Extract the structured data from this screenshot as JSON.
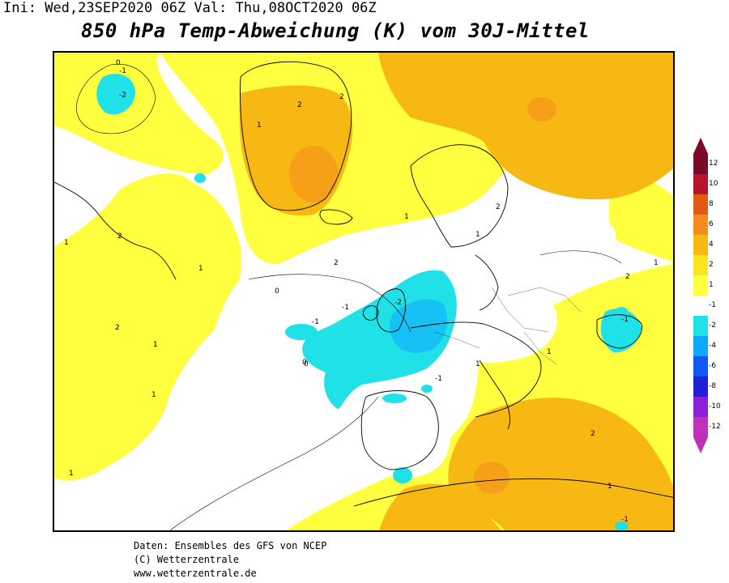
{
  "header": {
    "init_label": "Ini:",
    "init_value": "Wed,23SEP2020 06Z",
    "valid_label": "Val:",
    "valid_value": "Thu,08OCT2020 06Z"
  },
  "title": "850 hPa Temp-Abweichung (K) vom 30J-Mittel",
  "legend": {
    "labels": [
      "12",
      "10",
      "8",
      "6",
      "4",
      "2",
      "1",
      "-1",
      "-2",
      "-4",
      "-6",
      "-8",
      "-10",
      "-12"
    ],
    "colors": [
      "#7a0a2a",
      "#b81428",
      "#e05a10",
      "#f58a1e",
      "#f7b814",
      "#fbe520",
      "#ffff40",
      "#ffffff",
      "#20e0e8",
      "#10a8ff",
      "#1058f0",
      "#2020d8",
      "#8a20d8",
      "#c030b8"
    ]
  },
  "map": {
    "contour_labels": [
      "-1",
      "-2",
      "0",
      "1",
      "2",
      "1",
      "2",
      "2",
      "1",
      "0",
      "-1",
      "-1",
      "-2",
      "0",
      "1",
      "2",
      "1",
      "2",
      "1",
      "1",
      "2",
      "1",
      "-1",
      "-1",
      "1",
      "2",
      "2",
      "1",
      "0",
      "1",
      "-1",
      "1"
    ]
  },
  "footer": {
    "line1": "Daten: Ensembles des GFS von NCEP",
    "line2": "(C) Wetterzentrale",
    "line3": "www.wetterzentrale.de"
  }
}
